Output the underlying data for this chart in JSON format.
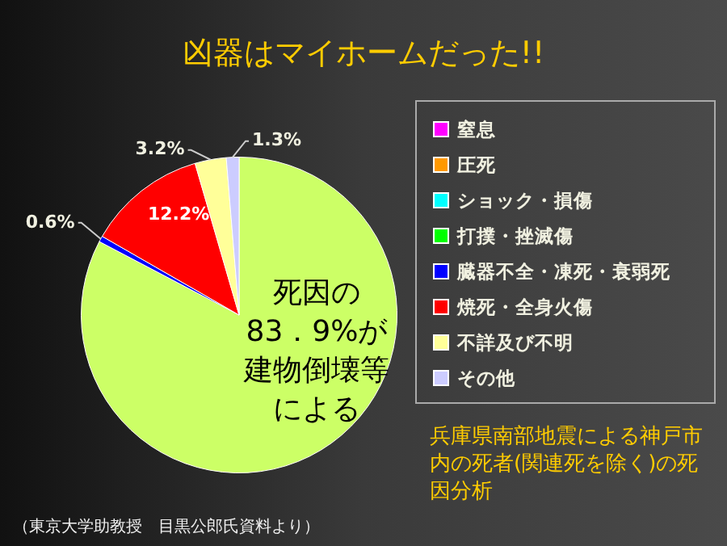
{
  "chart_data": {
    "type": "pie",
    "title": "凶器はマイホームだった!!",
    "categories": [
      null,
      "窒息",
      "圧死",
      "ショック・損傷",
      "打撲・挫滅傷",
      "臓器不全・凍死・衰弱死",
      "焼死・全身火傷",
      "不詳及び不明",
      "その他"
    ],
    "values": [
      82.7,
      null,
      null,
      null,
      null,
      0.6,
      12.2,
      3.2,
      1.3
    ],
    "colors": [
      "#ccff66",
      "#ff00ff",
      "#ff9900",
      "#00ffff",
      "#00ff00",
      "#0000ff",
      "#ff0000",
      "#ffff99",
      "#ccccff"
    ],
    "value_labels": [
      null,
      null,
      null,
      null,
      null,
      "0.6%",
      "12.2%",
      "3.2%",
      "1.3%"
    ],
    "legend": "right",
    "annotations": [
      "死因の83．9%が建物倒壊等による",
      "兵庫県南部地震による神戸市内の死者(関連死を除く)の死因分析",
      "（東京大学助教授　目黒公郎氏資料より）"
    ]
  }
}
